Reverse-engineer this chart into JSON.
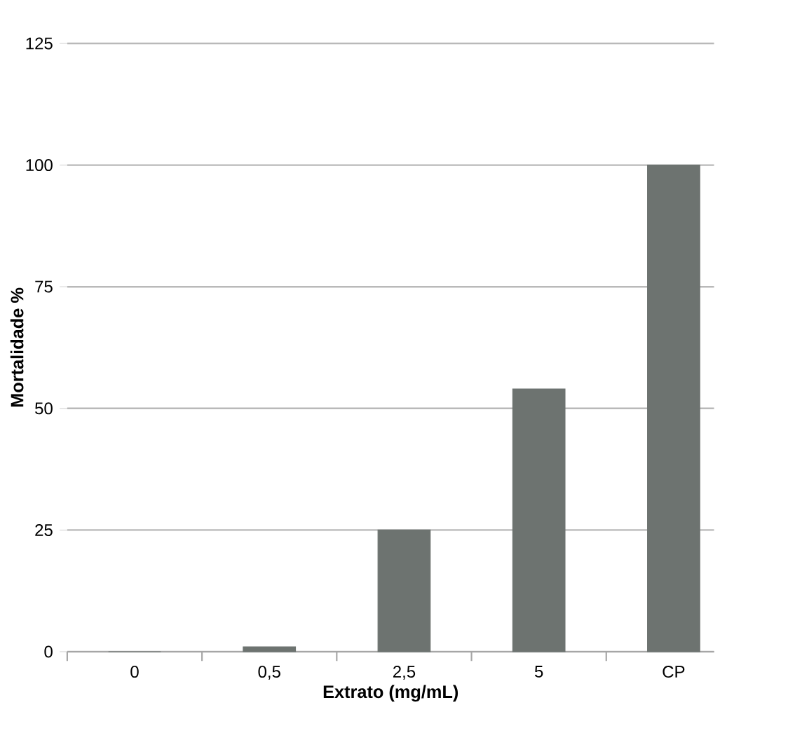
{
  "chart_data": {
    "type": "bar",
    "xlabel": "Extrato (mg/mL)",
    "ylabel": "Mortalidade %",
    "categories": [
      "0",
      "0,5",
      "2,5",
      "5",
      "CP"
    ],
    "values": [
      0,
      1,
      25,
      54,
      100
    ],
    "color": "#6d7370",
    "ylim": [
      0,
      125
    ],
    "yticks": [
      0,
      25,
      50,
      75,
      100,
      125
    ],
    "grid": "y"
  }
}
